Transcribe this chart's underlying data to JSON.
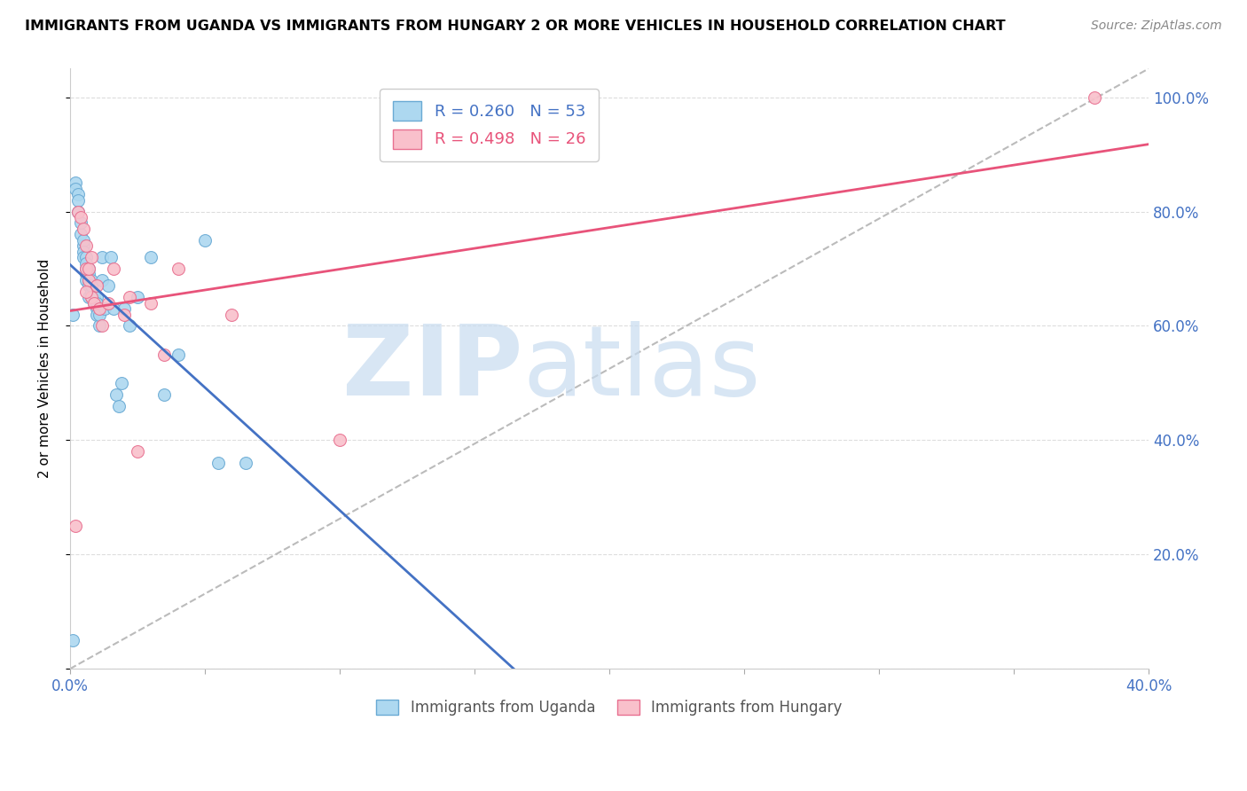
{
  "title": "IMMIGRANTS FROM UGANDA VS IMMIGRANTS FROM HUNGARY 2 OR MORE VEHICLES IN HOUSEHOLD CORRELATION CHART",
  "source": "Source: ZipAtlas.com",
  "ylabel": "2 or more Vehicles in Household",
  "xlim": [
    0.0,
    0.4
  ],
  "ylim": [
    0.0,
    1.05
  ],
  "xtick_vals": [
    0.0,
    0.05,
    0.1,
    0.15,
    0.2,
    0.25,
    0.3,
    0.35,
    0.4
  ],
  "xtick_labels": [
    "0.0%",
    "",
    "",
    "",
    "",
    "",
    "",
    "",
    "40.0%"
  ],
  "ytick_vals": [
    0.0,
    0.2,
    0.4,
    0.6,
    0.8,
    1.0
  ],
  "ytick_labels_right": [
    "",
    "20.0%",
    "40.0%",
    "60.0%",
    "80.0%",
    "100.0%"
  ],
  "uganda_R": 0.26,
  "uganda_N": 53,
  "hungary_R": 0.498,
  "hungary_N": 26,
  "uganda_color": "#ADD8F0",
  "hungary_color": "#F9C0CB",
  "uganda_edge_color": "#6AAAD4",
  "hungary_edge_color": "#E87090",
  "uganda_line_color": "#4472C4",
  "hungary_line_color": "#E8537A",
  "diagonal_color": "#BBBBBB",
  "background_color": "#FFFFFF",
  "grid_color": "#DDDDDD",
  "watermark_zip_color": "#C8DCF0",
  "watermark_atlas_color": "#C8DCF0",
  "uganda_x": [
    0.001,
    0.002,
    0.002,
    0.003,
    0.003,
    0.003,
    0.004,
    0.004,
    0.005,
    0.005,
    0.005,
    0.005,
    0.006,
    0.006,
    0.006,
    0.006,
    0.006,
    0.007,
    0.007,
    0.007,
    0.007,
    0.007,
    0.008,
    0.008,
    0.008,
    0.008,
    0.009,
    0.009,
    0.01,
    0.01,
    0.01,
    0.01,
    0.011,
    0.011,
    0.012,
    0.012,
    0.013,
    0.014,
    0.015,
    0.016,
    0.017,
    0.018,
    0.019,
    0.02,
    0.022,
    0.025,
    0.03,
    0.035,
    0.04,
    0.05,
    0.055,
    0.065,
    0.001
  ],
  "uganda_y": [
    0.05,
    0.85,
    0.84,
    0.83,
    0.82,
    0.8,
    0.76,
    0.78,
    0.74,
    0.75,
    0.73,
    0.72,
    0.72,
    0.7,
    0.71,
    0.69,
    0.68,
    0.7,
    0.69,
    0.68,
    0.67,
    0.65,
    0.68,
    0.66,
    0.67,
    0.65,
    0.65,
    0.64,
    0.63,
    0.65,
    0.62,
    0.64,
    0.6,
    0.62,
    0.68,
    0.72,
    0.63,
    0.67,
    0.72,
    0.63,
    0.48,
    0.46,
    0.5,
    0.63,
    0.6,
    0.65,
    0.72,
    0.48,
    0.55,
    0.75,
    0.36,
    0.36,
    0.62
  ],
  "hungary_x": [
    0.002,
    0.003,
    0.004,
    0.005,
    0.006,
    0.006,
    0.007,
    0.007,
    0.008,
    0.009,
    0.01,
    0.011,
    0.012,
    0.014,
    0.016,
    0.02,
    0.022,
    0.025,
    0.03,
    0.035,
    0.04,
    0.06,
    0.1,
    0.38,
    0.006,
    0.008
  ],
  "hungary_y": [
    0.25,
    0.8,
    0.79,
    0.77,
    0.74,
    0.7,
    0.68,
    0.7,
    0.65,
    0.64,
    0.67,
    0.63,
    0.6,
    0.64,
    0.7,
    0.62,
    0.65,
    0.38,
    0.64,
    0.55,
    0.7,
    0.62,
    0.4,
    1.0,
    0.66,
    0.72
  ]
}
